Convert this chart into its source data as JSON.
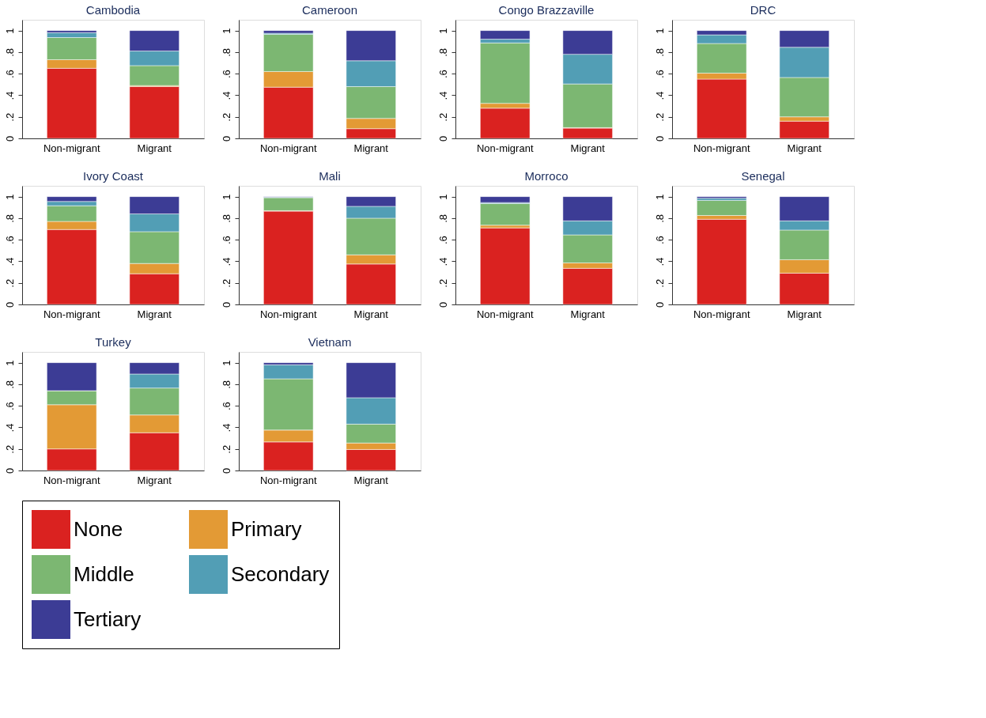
{
  "chart_data": [
    {
      "type": "bar",
      "title": "Cambodia",
      "stacked": true,
      "legend": "bottom",
      "grid": false,
      "categories": [
        "Non-migrant",
        "Migrant"
      ],
      "ylim": [
        0,
        1.1
      ],
      "yticks": [
        0,
        {
          "value": 0.2,
          "label": ".2"
        },
        {
          "value": 0.4,
          "label": ".4"
        },
        {
          "value": 0.6,
          "label": ".6"
        },
        {
          "value": 0.8,
          "label": ".8"
        },
        1
      ],
      "series": [
        {
          "name": "None",
          "color": "#da2220",
          "values": [
            0.65,
            0.48
          ]
        },
        {
          "name": "Primary",
          "color": "#e39a35",
          "values": [
            0.08,
            0.01
          ]
        },
        {
          "name": "Middle",
          "color": "#7cb772",
          "values": [
            0.205,
            0.185
          ]
        },
        {
          "name": "Secondary",
          "color": "#529eb5",
          "values": [
            0.045,
            0.135
          ]
        },
        {
          "name": "Tertiary",
          "color": "#3c3c95",
          "values": [
            0.02,
            0.19
          ]
        }
      ]
    },
    {
      "type": "bar",
      "title": "Cameroon",
      "stacked": true,
      "legend": "bottom",
      "grid": false,
      "categories": [
        "Non-migrant",
        "Migrant"
      ],
      "ylim": [
        0,
        1.1
      ],
      "yticks": [
        0,
        {
          "value": 0.2,
          "label": ".2"
        },
        {
          "value": 0.4,
          "label": ".4"
        },
        {
          "value": 0.6,
          "label": ".6"
        },
        {
          "value": 0.8,
          "label": ".8"
        },
        1
      ],
      "series": [
        {
          "name": "None",
          "color": "#da2220",
          "values": [
            0.475,
            0.09
          ]
        },
        {
          "name": "Primary",
          "color": "#e39a35",
          "values": [
            0.145,
            0.095
          ]
        },
        {
          "name": "Middle",
          "color": "#7cb772",
          "values": [
            0.345,
            0.295
          ]
        },
        {
          "name": "Secondary",
          "color": "#529eb5",
          "values": [
            0.01,
            0.24
          ]
        },
        {
          "name": "Tertiary",
          "color": "#3c3c95",
          "values": [
            0.025,
            0.28
          ]
        }
      ]
    },
    {
      "type": "bar",
      "title": "Congo Brazzaville",
      "stacked": true,
      "legend": "bottom",
      "grid": false,
      "categories": [
        "Non-migrant",
        "Migrant"
      ],
      "ylim": [
        0,
        1.1
      ],
      "yticks": [
        0,
        {
          "value": 0.2,
          "label": ".2"
        },
        {
          "value": 0.4,
          "label": ".4"
        },
        {
          "value": 0.6,
          "label": ".6"
        },
        {
          "value": 0.8,
          "label": ".8"
        },
        1
      ],
      "series": [
        {
          "name": "None",
          "color": "#da2220",
          "values": [
            0.28,
            0.095
          ]
        },
        {
          "name": "Primary",
          "color": "#e39a35",
          "values": [
            0.045,
            0.005
          ]
        },
        {
          "name": "Middle",
          "color": "#7cb772",
          "values": [
            0.56,
            0.405
          ]
        },
        {
          "name": "Secondary",
          "color": "#529eb5",
          "values": [
            0.035,
            0.275
          ]
        },
        {
          "name": "Tertiary",
          "color": "#3c3c95",
          "values": [
            0.08,
            0.22
          ]
        }
      ]
    },
    {
      "type": "bar",
      "title": "DRC",
      "stacked": true,
      "legend": "bottom",
      "grid": false,
      "categories": [
        "Non-migrant",
        "Migrant"
      ],
      "ylim": [
        0,
        1.1
      ],
      "yticks": [
        0,
        {
          "value": 0.2,
          "label": ".2"
        },
        {
          "value": 0.4,
          "label": ".4"
        },
        {
          "value": 0.6,
          "label": ".6"
        },
        {
          "value": 0.8,
          "label": ".8"
        },
        1
      ],
      "series": [
        {
          "name": "None",
          "color": "#da2220",
          "values": [
            0.55,
            0.16
          ]
        },
        {
          "name": "Primary",
          "color": "#e39a35",
          "values": [
            0.055,
            0.04
          ]
        },
        {
          "name": "Middle",
          "color": "#7cb772",
          "values": [
            0.275,
            0.365
          ]
        },
        {
          "name": "Secondary",
          "color": "#529eb5",
          "values": [
            0.08,
            0.28
          ]
        },
        {
          "name": "Tertiary",
          "color": "#3c3c95",
          "values": [
            0.04,
            0.155
          ]
        }
      ]
    },
    {
      "type": "bar",
      "title": "Ivory Coast",
      "stacked": true,
      "legend": "bottom",
      "grid": false,
      "categories": [
        "Non-migrant",
        "Migrant"
      ],
      "ylim": [
        0,
        1.1
      ],
      "yticks": [
        0,
        {
          "value": 0.2,
          "label": ".2"
        },
        {
          "value": 0.4,
          "label": ".4"
        },
        {
          "value": 0.6,
          "label": ".6"
        },
        {
          "value": 0.8,
          "label": ".8"
        },
        1
      ],
      "series": [
        {
          "name": "None",
          "color": "#da2220",
          "values": [
            0.695,
            0.285
          ]
        },
        {
          "name": "Primary",
          "color": "#e39a35",
          "values": [
            0.075,
            0.095
          ]
        },
        {
          "name": "Middle",
          "color": "#7cb772",
          "values": [
            0.145,
            0.295
          ]
        },
        {
          "name": "Secondary",
          "color": "#529eb5",
          "values": [
            0.04,
            0.165
          ]
        },
        {
          "name": "Tertiary",
          "color": "#3c3c95",
          "values": [
            0.045,
            0.16
          ]
        }
      ]
    },
    {
      "type": "bar",
      "title": "Mali",
      "stacked": true,
      "legend": "bottom",
      "grid": false,
      "categories": [
        "Non-migrant",
        "Migrant"
      ],
      "ylim": [
        0,
        1.1
      ],
      "yticks": [
        0,
        {
          "value": 0.2,
          "label": ".2"
        },
        {
          "value": 0.4,
          "label": ".4"
        },
        {
          "value": 0.6,
          "label": ".6"
        },
        {
          "value": 0.8,
          "label": ".8"
        },
        1
      ],
      "series": [
        {
          "name": "None",
          "color": "#da2220",
          "values": [
            0.865,
            0.375
          ]
        },
        {
          "name": "Primary",
          "color": "#e39a35",
          "values": [
            0.005,
            0.085
          ]
        },
        {
          "name": "Middle",
          "color": "#7cb772",
          "values": [
            0.12,
            0.34
          ]
        },
        {
          "name": "Secondary",
          "color": "#529eb5",
          "values": [
            0.005,
            0.11
          ]
        },
        {
          "name": "Tertiary",
          "color": "#3c3c95",
          "values": [
            0.005,
            0.09
          ]
        }
      ]
    },
    {
      "type": "bar",
      "title": "Morroco",
      "stacked": true,
      "legend": "bottom",
      "grid": false,
      "categories": [
        "Non-migrant",
        "Migrant"
      ],
      "ylim": [
        0,
        1.1
      ],
      "yticks": [
        0,
        {
          "value": 0.2,
          "label": ".2"
        },
        {
          "value": 0.4,
          "label": ".4"
        },
        {
          "value": 0.6,
          "label": ".6"
        },
        {
          "value": 0.8,
          "label": ".8"
        },
        1
      ],
      "series": [
        {
          "name": "None",
          "color": "#da2220",
          "values": [
            0.71,
            0.335
          ]
        },
        {
          "name": "Primary",
          "color": "#e39a35",
          "values": [
            0.025,
            0.05
          ]
        },
        {
          "name": "Middle",
          "color": "#7cb772",
          "values": [
            0.2,
            0.26
          ]
        },
        {
          "name": "Secondary",
          "color": "#529eb5",
          "values": [
            0.01,
            0.13
          ]
        },
        {
          "name": "Tertiary",
          "color": "#3c3c95",
          "values": [
            0.055,
            0.225
          ]
        }
      ]
    },
    {
      "type": "bar",
      "title": "Senegal",
      "stacked": true,
      "legend": "bottom",
      "grid": false,
      "categories": [
        "Non-migrant",
        "Migrant"
      ],
      "ylim": [
        0,
        1.1
      ],
      "yticks": [
        0,
        {
          "value": 0.2,
          "label": ".2"
        },
        {
          "value": 0.4,
          "label": ".4"
        },
        {
          "value": 0.6,
          "label": ".6"
        },
        {
          "value": 0.8,
          "label": ".8"
        },
        1
      ],
      "series": [
        {
          "name": "None",
          "color": "#da2220",
          "values": [
            0.79,
            0.29
          ]
        },
        {
          "name": "Primary",
          "color": "#e39a35",
          "values": [
            0.035,
            0.125
          ]
        },
        {
          "name": "Middle",
          "color": "#7cb772",
          "values": [
            0.14,
            0.275
          ]
        },
        {
          "name": "Secondary",
          "color": "#529eb5",
          "values": [
            0.02,
            0.085
          ]
        },
        {
          "name": "Tertiary",
          "color": "#3c3c95",
          "values": [
            0.015,
            0.225
          ]
        }
      ]
    },
    {
      "type": "bar",
      "title": "Turkey",
      "stacked": true,
      "legend": "bottom",
      "grid": false,
      "categories": [
        "Non-migrant",
        "Migrant"
      ],
      "ylim": [
        0,
        1.1
      ],
      "yticks": [
        0,
        {
          "value": 0.2,
          "label": ".2"
        },
        {
          "value": 0.4,
          "label": ".4"
        },
        {
          "value": 0.6,
          "label": ".6"
        },
        {
          "value": 0.8,
          "label": ".8"
        },
        1
      ],
      "series": [
        {
          "name": "None",
          "color": "#da2220",
          "values": [
            0.2,
            0.35
          ]
        },
        {
          "name": "Primary",
          "color": "#e39a35",
          "values": [
            0.41,
            0.165
          ]
        },
        {
          "name": "Middle",
          "color": "#7cb772",
          "values": [
            0.13,
            0.25
          ]
        },
        {
          "name": "Secondary",
          "color": "#529eb5",
          "values": [
            0,
            0.13
          ]
        },
        {
          "name": "Tertiary",
          "color": "#3c3c95",
          "values": [
            0.26,
            0.105
          ]
        }
      ]
    },
    {
      "type": "bar",
      "title": "Vietnam",
      "stacked": true,
      "legend": "bottom",
      "grid": false,
      "categories": [
        "Non-migrant",
        "Migrant"
      ],
      "ylim": [
        0,
        1.1
      ],
      "yticks": [
        0,
        {
          "value": 0.2,
          "label": ".2"
        },
        {
          "value": 0.4,
          "label": ".4"
        },
        {
          "value": 0.6,
          "label": ".6"
        },
        {
          "value": 0.8,
          "label": ".8"
        },
        1
      ],
      "series": [
        {
          "name": "None",
          "color": "#da2220",
          "values": [
            0.265,
            0.195
          ]
        },
        {
          "name": "Primary",
          "color": "#e39a35",
          "values": [
            0.11,
            0.06
          ]
        },
        {
          "name": "Middle",
          "color": "#7cb772",
          "values": [
            0.475,
            0.175
          ]
        },
        {
          "name": "Secondary",
          "color": "#529eb5",
          "values": [
            0.13,
            0.245
          ]
        },
        {
          "name": "Tertiary",
          "color": "#3c3c95",
          "values": [
            0.02,
            0.325
          ]
        }
      ]
    }
  ]
}
